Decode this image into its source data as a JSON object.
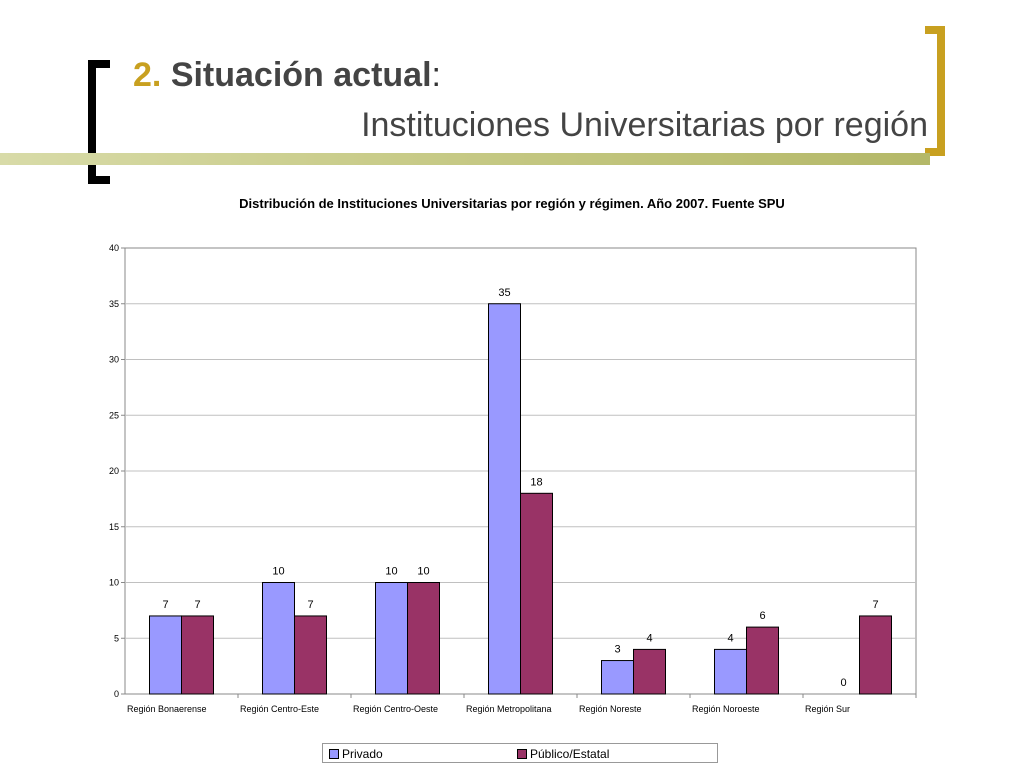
{
  "slide": {
    "number": "2.",
    "title": "Situación actual",
    "colon": ":",
    "subtitle": "Instituciones Universitarias por región"
  },
  "colors": {
    "privado": "#9999ff",
    "publico": "#993366",
    "accent": "#c8a020"
  },
  "chart_data": {
    "type": "bar",
    "title": "Distribución de Instituciones Universitarias por región y régimen. Año 2007. Fuente SPU",
    "categories": [
      "Región Bonaerense",
      "Región Centro-Este",
      "Región Centro-Oeste",
      "Región Metropolitana",
      "Región Noreste",
      "Región Noroeste",
      "Región Sur"
    ],
    "series": [
      {
        "name": "Privado",
        "values": [
          7,
          10,
          10,
          35,
          3,
          4,
          0
        ]
      },
      {
        "name": "Público/Estatal",
        "values": [
          7,
          7,
          10,
          18,
          4,
          6,
          7
        ]
      }
    ],
    "ylim": [
      0,
      40
    ],
    "yticks": [
      0,
      5,
      10,
      15,
      20,
      25,
      30,
      35,
      40
    ],
    "grid": true,
    "legend_position": "bottom"
  }
}
